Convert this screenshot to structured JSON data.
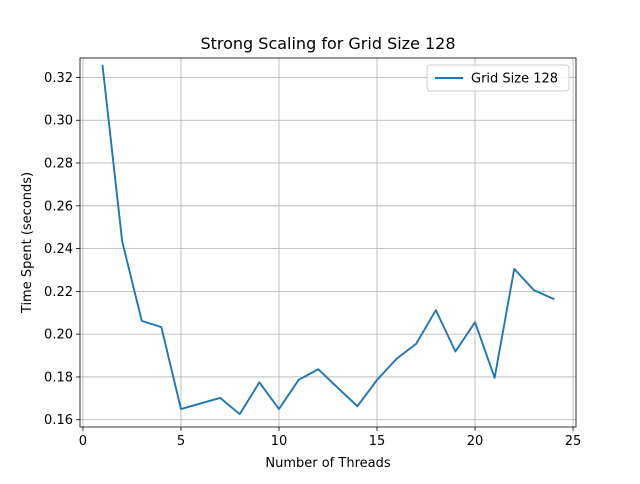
{
  "chart_data": {
    "type": "line",
    "title": "Strong Scaling for Grid Size 128",
    "xlabel": "Number of Threads",
    "ylabel": "Time Spent (seconds)",
    "xlim": [
      -0.15,
      25.15
    ],
    "ylim": [
      0.1566,
      0.3291
    ],
    "xticks": [
      0,
      5,
      10,
      15,
      20,
      25
    ],
    "yticks": [
      0.16,
      0.18,
      0.2,
      0.22,
      0.24,
      0.26,
      0.28,
      0.3,
      0.32
    ],
    "ytick_labels": [
      "0.16",
      "0.18",
      "0.20",
      "0.22",
      "0.24",
      "0.26",
      "0.28",
      "0.30",
      "0.32"
    ],
    "grid": true,
    "legend_position": "top-right",
    "series": [
      {
        "name": "Grid Size 128",
        "color": "#1f77b4",
        "x": [
          1,
          2,
          3,
          4,
          5,
          6,
          7,
          8,
          9,
          10,
          11,
          12,
          13,
          14,
          15,
          16,
          17,
          18,
          19,
          20,
          21,
          22,
          23,
          24
        ],
        "y": [
          0.3255,
          0.2435,
          0.2062,
          0.2033,
          0.165,
          0.1676,
          0.1702,
          0.1626,
          0.1775,
          0.165,
          0.1786,
          0.1836,
          0.1749,
          0.1663,
          0.1786,
          0.1885,
          0.1955,
          0.2112,
          0.1919,
          0.2056,
          0.1796,
          0.2305,
          0.2206,
          0.2165
        ]
      }
    ]
  }
}
